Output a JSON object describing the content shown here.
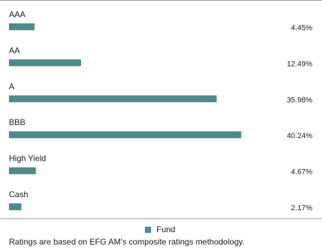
{
  "chart_data": {
    "type": "bar",
    "orientation": "horizontal",
    "categories": [
      "AAA",
      "AA",
      "A",
      "BBB",
      "High Yield",
      "Cash"
    ],
    "series": [
      {
        "name": "Fund",
        "values": [
          4.45,
          12.49,
          35.98,
          40.24,
          4.67,
          2.17
        ],
        "labels": [
          "4.45%",
          "12.49%",
          "35.98%",
          "40.24%",
          "4.67%",
          "2.17%"
        ],
        "color": "#4e8a8b"
      }
    ],
    "unit": "%",
    "xlim": [
      0,
      44
    ],
    "grid": false,
    "legend": "bottom-center"
  },
  "legend": {
    "label": "Fund"
  },
  "footnote": "Ratings are based on EFG AM’s composite ratings methodology.",
  "colors": {
    "bar": "#4e8a8b",
    "rule": "#9a9a9a",
    "text": "#1a1a1a"
  }
}
